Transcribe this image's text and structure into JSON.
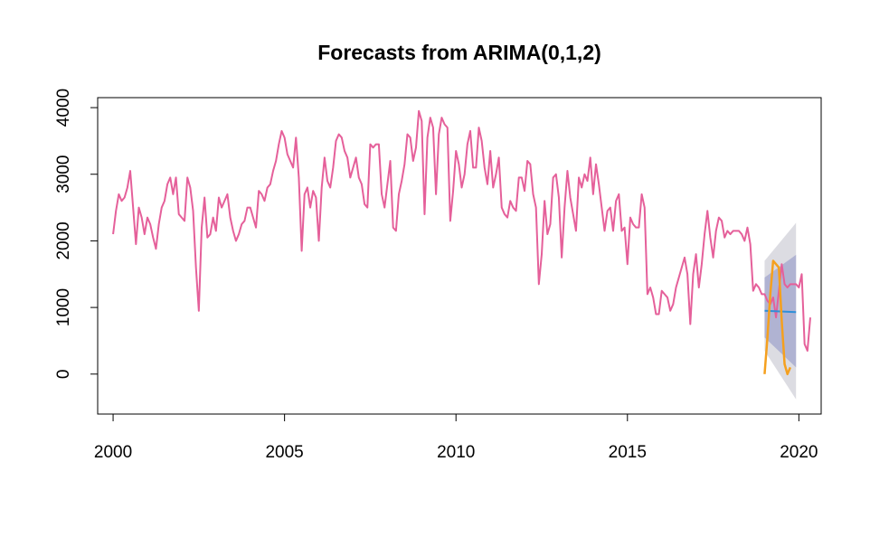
{
  "chart_data": {
    "type": "line",
    "title": "Forecasts from ARIMA(0,1,2)",
    "xlabel": "",
    "ylabel": "",
    "xlim": [
      1999.55,
      2020.65
    ],
    "ylim": [
      -600,
      4150
    ],
    "x_ticks": [
      2000,
      2005,
      2010,
      2015,
      2020
    ],
    "y_ticks": [
      0,
      1000,
      2000,
      3000,
      4000
    ],
    "grid": false,
    "legend": "none",
    "colors": {
      "history": "#e5609a",
      "actual": "#f5a01e",
      "forecast": "#2f8fd8",
      "pi95": "#dcdce2",
      "pi80": "#b0b3d2"
    },
    "series": [
      {
        "role": "history",
        "start": 2000.0,
        "step": 0.0833333,
        "values": [
          2100,
          2450,
          2700,
          2600,
          2650,
          2800,
          3050,
          2500,
          1950,
          2500,
          2350,
          2100,
          2350,
          2250,
          2050,
          1880,
          2250,
          2500,
          2600,
          2850,
          2950,
          2700,
          2950,
          2400,
          2350,
          2300,
          2950,
          2800,
          2450,
          1600,
          950,
          2200,
          2650,
          2050,
          2100,
          2350,
          2150,
          2650,
          2500,
          2600,
          2700,
          2350,
          2150,
          2000,
          2100,
          2250,
          2300,
          2500,
          2500,
          2350,
          2200,
          2750,
          2700,
          2600,
          2800,
          2850,
          3050,
          3200,
          3450,
          3650,
          3550,
          3300,
          3200,
          3100,
          3550,
          2950,
          1850,
          2700,
          2800,
          2500,
          2750,
          2650,
          2000,
          2800,
          3250,
          2900,
          2800,
          3100,
          3500,
          3600,
          3550,
          3350,
          3250,
          2950,
          3100,
          3250,
          2950,
          2850,
          2550,
          2500,
          3450,
          3400,
          3450,
          3450,
          2700,
          2500,
          2850,
          3200,
          2200,
          2150,
          2700,
          2900,
          3150,
          3600,
          3550,
          3200,
          3400,
          3950,
          3800,
          2400,
          3550,
          3850,
          3700,
          2700,
          3600,
          3850,
          3750,
          3700,
          2300,
          2750,
          3350,
          3150,
          2800,
          3000,
          3450,
          3650,
          3100,
          3100,
          3700,
          3500,
          3100,
          2850,
          3350,
          2800,
          3000,
          3250,
          2500,
          2400,
          2350,
          2600,
          2500,
          2450,
          2950,
          2950,
          2750,
          3200,
          3150,
          2700,
          2500,
          1350,
          1800,
          2600,
          2100,
          2250,
          2950,
          3000,
          2650,
          1750,
          2500,
          3050,
          2650,
          2400,
          2150,
          2950,
          2800,
          3000,
          2900,
          3250,
          2700,
          3150,
          2850,
          2500,
          2150,
          2450,
          2500,
          2150,
          2600,
          2700,
          2150,
          2200,
          1650,
          2350,
          2250,
          2200,
          2200,
          2700,
          2500,
          1200,
          1300,
          1150,
          900,
          900,
          1250,
          1200,
          1150,
          950,
          1050,
          1300,
          1450,
          1600,
          1750,
          1500,
          750,
          1500,
          1800,
          1300,
          1650,
          2100,
          2450,
          2050,
          1750,
          2150,
          2350,
          2300,
          2050,
          2150,
          2100,
          2150,
          2150,
          2150,
          2100,
          2000,
          2200,
          1950,
          1250,
          1350,
          1300,
          1200,
          1200,
          1100,
          1050,
          1150,
          850,
          1250,
          1650,
          1350,
          1300,
          1350,
          1350,
          1350,
          1300,
          1500,
          450,
          350,
          850
        ]
      },
      {
        "role": "actual",
        "start": 2019.0,
        "step": 0.0833333,
        "values": [
          0,
          550,
          1200,
          1700,
          1650,
          1600,
          800,
          150,
          0,
          100
        ]
      },
      {
        "role": "forecast",
        "x": [
          2019.0,
          2019.917
        ],
        "mean": [
          950,
          930
        ],
        "lo80": [
          550,
          100
        ],
        "hi80": [
          1450,
          1790
        ],
        "lo95": [
          350,
          -380
        ],
        "hi95": [
          1700,
          2270
        ]
      }
    ]
  }
}
